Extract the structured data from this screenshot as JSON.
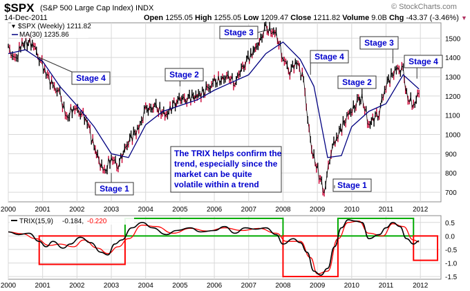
{
  "header": {
    "symbol": "$SPX",
    "name": "(S&P 500 Large Cap Index)",
    "exchange": "INDX",
    "date": "14-Dec-2011",
    "open_label": "Open",
    "open": "1255.05",
    "high_label": "High",
    "high": "1255.05",
    "low_label": "Low",
    "low": "1209.47",
    "close_label": "Close",
    "close": "1211.82",
    "volume_label": "Volume",
    "volume": "9.0B",
    "chg_label": "Chg",
    "chg": "-43.37 (-3.46%)",
    "brand": "© StockCharts.com"
  },
  "colors": {
    "price": "#000000",
    "price_down": "#cc0033",
    "ma": "#000080",
    "trix": "#000000",
    "signal": "#ff0000",
    "uptrend_box": "#00aa00",
    "downtrend_box": "#ff0000",
    "callout_text": "#0000cc",
    "grid": "#d8d8d8"
  },
  "chart_data": [
    {
      "type": "line",
      "legend": [
        {
          "label": "$SPX (Weekly) 1211.82",
          "icon": "candlestick-icon"
        },
        {
          "label": "MA(30) 1235.86",
          "icon": "line-icon"
        }
      ],
      "x_ticks": [
        "2000",
        "2001",
        "2002",
        "2003",
        "2004",
        "2005",
        "2006",
        "2007",
        "2008",
        "2009",
        "2010",
        "2011",
        "2012"
      ],
      "y_ticks": [
        "700",
        "800",
        "900",
        "1000",
        "1100",
        "1200",
        "1300",
        "1400",
        "1500"
      ],
      "ylim": [
        650,
        1580
      ],
      "grid": true,
      "legend_position": "top-left",
      "series": [
        {
          "name": "$SPX (Weekly)",
          "x": [
            2000.0,
            2000.2,
            2000.4,
            2000.7,
            2000.9,
            2001.1,
            2001.3,
            2001.5,
            2001.7,
            2001.9,
            2002.1,
            2002.3,
            2002.5,
            2002.6,
            2002.8,
            2003.0,
            2003.2,
            2003.5,
            2003.8,
            2004.0,
            2004.3,
            2004.6,
            2004.9,
            2005.2,
            2005.5,
            2005.8,
            2006.0,
            2006.4,
            2006.6,
            2006.9,
            2007.1,
            2007.2,
            2007.5,
            2007.8,
            2008.0,
            2008.2,
            2008.4,
            2008.6,
            2008.8,
            2008.9,
            2009.2,
            2009.4,
            2009.6,
            2009.9,
            2010.2,
            2010.3,
            2010.5,
            2010.8,
            2011.0,
            2011.3,
            2011.5,
            2011.6,
            2011.8,
            2011.96
          ],
          "values": [
            1450,
            1380,
            1470,
            1480,
            1400,
            1320,
            1250,
            1210,
            1080,
            1140,
            1120,
            1070,
            930,
            880,
            800,
            880,
            840,
            970,
            1030,
            1130,
            1140,
            1100,
            1180,
            1190,
            1200,
            1230,
            1270,
            1300,
            1270,
            1380,
            1420,
            1440,
            1550,
            1520,
            1400,
            1330,
            1380,
            1280,
            950,
            880,
            700,
            920,
            1000,
            1100,
            1170,
            1190,
            1050,
            1120,
            1260,
            1340,
            1330,
            1200,
            1150,
            1212
          ]
        },
        {
          "name": "MA(30)",
          "x": [
            2000.0,
            2000.5,
            2001.0,
            2001.5,
            2002.0,
            2002.5,
            2003.0,
            2003.5,
            2004.0,
            2004.5,
            2005.0,
            2005.5,
            2006.0,
            2006.5,
            2007.0,
            2007.5,
            2008.0,
            2008.5,
            2008.9,
            2009.3,
            2009.7,
            2010.0,
            2010.5,
            2011.0,
            2011.5,
            2011.96
          ],
          "values": [
            1420,
            1440,
            1380,
            1250,
            1150,
            1040,
            900,
            880,
            1050,
            1120,
            1150,
            1180,
            1230,
            1270,
            1310,
            1420,
            1480,
            1390,
            1250,
            880,
            890,
            1040,
            1120,
            1160,
            1310,
            1236
          ]
        }
      ],
      "annotations": [
        {
          "label": "Stage 4",
          "x": 2000.9,
          "y": 1400,
          "icon": "callout-box"
        },
        {
          "label": "Stage 1",
          "x": 2003.0,
          "y": 800,
          "icon": "callout-box"
        },
        {
          "label": "Stage 2",
          "x": 2005.0,
          "y": 1250,
          "icon": "callout-box"
        },
        {
          "label": "Stage 3",
          "x": 2007.7,
          "y": 1550,
          "icon": "callout-box"
        },
        {
          "label": "Stage 4",
          "x": 2008.8,
          "y": 1310,
          "icon": "callout-box"
        },
        {
          "label": "Stage 1",
          "x": 2009.5,
          "y": 720,
          "icon": "callout-box"
        },
        {
          "label": "Stage 2",
          "x": 2010.3,
          "y": 1210,
          "icon": "callout-box"
        },
        {
          "label": "Stage 3",
          "x": 2011.2,
          "y": 1370,
          "icon": "callout-box"
        },
        {
          "label": "Stage 4",
          "x": 2011.9,
          "y": 1290,
          "icon": "callout-box"
        }
      ],
      "note": [
        "The TRIX helps confirm the",
        "trend, especially since the",
        "market can be quite",
        "volatile within a trend"
      ]
    },
    {
      "type": "line",
      "legend": [
        {
          "label": "TRIX(15,9)",
          "icon": "line-icon"
        },
        {
          "label": "-0.184,",
          "icon": ""
        },
        {
          "label": "-0.220",
          "icon": ""
        }
      ],
      "x_ticks": [
        "2000",
        "2001",
        "2002",
        "2003",
        "2004",
        "2005",
        "2006",
        "2007",
        "2008",
        "2009",
        "2010",
        "2011",
        "2012"
      ],
      "y_ticks": [
        "-1.5",
        "-1.0",
        "-0.5",
        "0.0",
        "0.5"
      ],
      "ylim": [
        -1.6,
        0.75
      ],
      "grid": true,
      "series": [
        {
          "name": "TRIX(15,9)",
          "x": [
            2000.0,
            2000.3,
            2000.6,
            2000.9,
            2001.1,
            2001.3,
            2001.6,
            2001.8,
            2002.1,
            2002.4,
            2002.7,
            2002.9,
            2003.1,
            2003.3,
            2003.6,
            2003.9,
            2004.2,
            2004.6,
            2004.9,
            2005.3,
            2005.6,
            2006.0,
            2006.3,
            2006.6,
            2006.9,
            2007.2,
            2007.5,
            2007.8,
            2008.0,
            2008.3,
            2008.5,
            2008.7,
            2008.9,
            2009.1,
            2009.3,
            2009.5,
            2009.7,
            2009.9,
            2010.1,
            2010.3,
            2010.5,
            2010.8,
            2011.0,
            2011.2,
            2011.4,
            2011.6,
            2011.8,
            2011.96
          ],
          "values": [
            0.15,
            0.05,
            0.1,
            -0.2,
            -0.4,
            -0.2,
            -0.45,
            -0.3,
            -0.05,
            -0.25,
            -0.6,
            -0.7,
            -0.3,
            -0.15,
            0.3,
            0.5,
            0.3,
            0.05,
            0.2,
            0.3,
            0.15,
            0.2,
            0.35,
            0.1,
            0.3,
            0.25,
            0.3,
            0.05,
            -0.3,
            -0.1,
            -0.25,
            -0.6,
            -1.3,
            -1.45,
            -1.2,
            -0.4,
            0.3,
            0.6,
            0.55,
            0.5,
            -0.1,
            0.05,
            0.3,
            0.5,
            0.35,
            -0.1,
            -0.3,
            -0.184
          ]
        },
        {
          "name": "Signal",
          "x": [
            2000.0,
            2000.4,
            2000.8,
            2001.2,
            2001.5,
            2001.9,
            2002.2,
            2002.6,
            2002.9,
            2003.2,
            2003.5,
            2003.9,
            2004.3,
            2004.8,
            2005.3,
            2005.8,
            2006.3,
            2006.8,
            2007.3,
            2007.8,
            2008.1,
            2008.5,
            2008.8,
            2009.0,
            2009.3,
            2009.6,
            2009.9,
            2010.2,
            2010.5,
            2010.9,
            2011.2,
            2011.5,
            2011.8,
            2011.96
          ],
          "values": [
            0.15,
            0.08,
            -0.1,
            -0.35,
            -0.3,
            -0.4,
            -0.15,
            -0.45,
            -0.65,
            -0.4,
            -0.1,
            0.4,
            0.35,
            0.1,
            0.28,
            0.18,
            0.3,
            0.2,
            0.28,
            0.1,
            -0.2,
            -0.2,
            -0.8,
            -1.4,
            -1.3,
            -0.1,
            0.5,
            0.55,
            0.1,
            0.0,
            0.45,
            0.35,
            -0.15,
            -0.22
          ]
        }
      ],
      "regions": [
        {
          "kind": "downtrend",
          "x0": 2000.9,
          "x1": 2003.4,
          "y0": -1.05,
          "y1": 0.0
        },
        {
          "kind": "uptrend",
          "x0": 2003.4,
          "x1": 2008.0,
          "y0": 0.0,
          "y1": 0.65
        },
        {
          "kind": "downtrend",
          "x0": 2008.0,
          "x1": 2009.6,
          "y0": -1.5,
          "y1": 0.0
        },
        {
          "kind": "uptrend",
          "x0": 2009.6,
          "x1": 2011.8,
          "y0": 0.0,
          "y1": 0.65
        },
        {
          "kind": "downtrend",
          "x0": 2011.8,
          "x1": 2012.5,
          "y0": -0.9,
          "y1": 0.0
        }
      ]
    }
  ]
}
